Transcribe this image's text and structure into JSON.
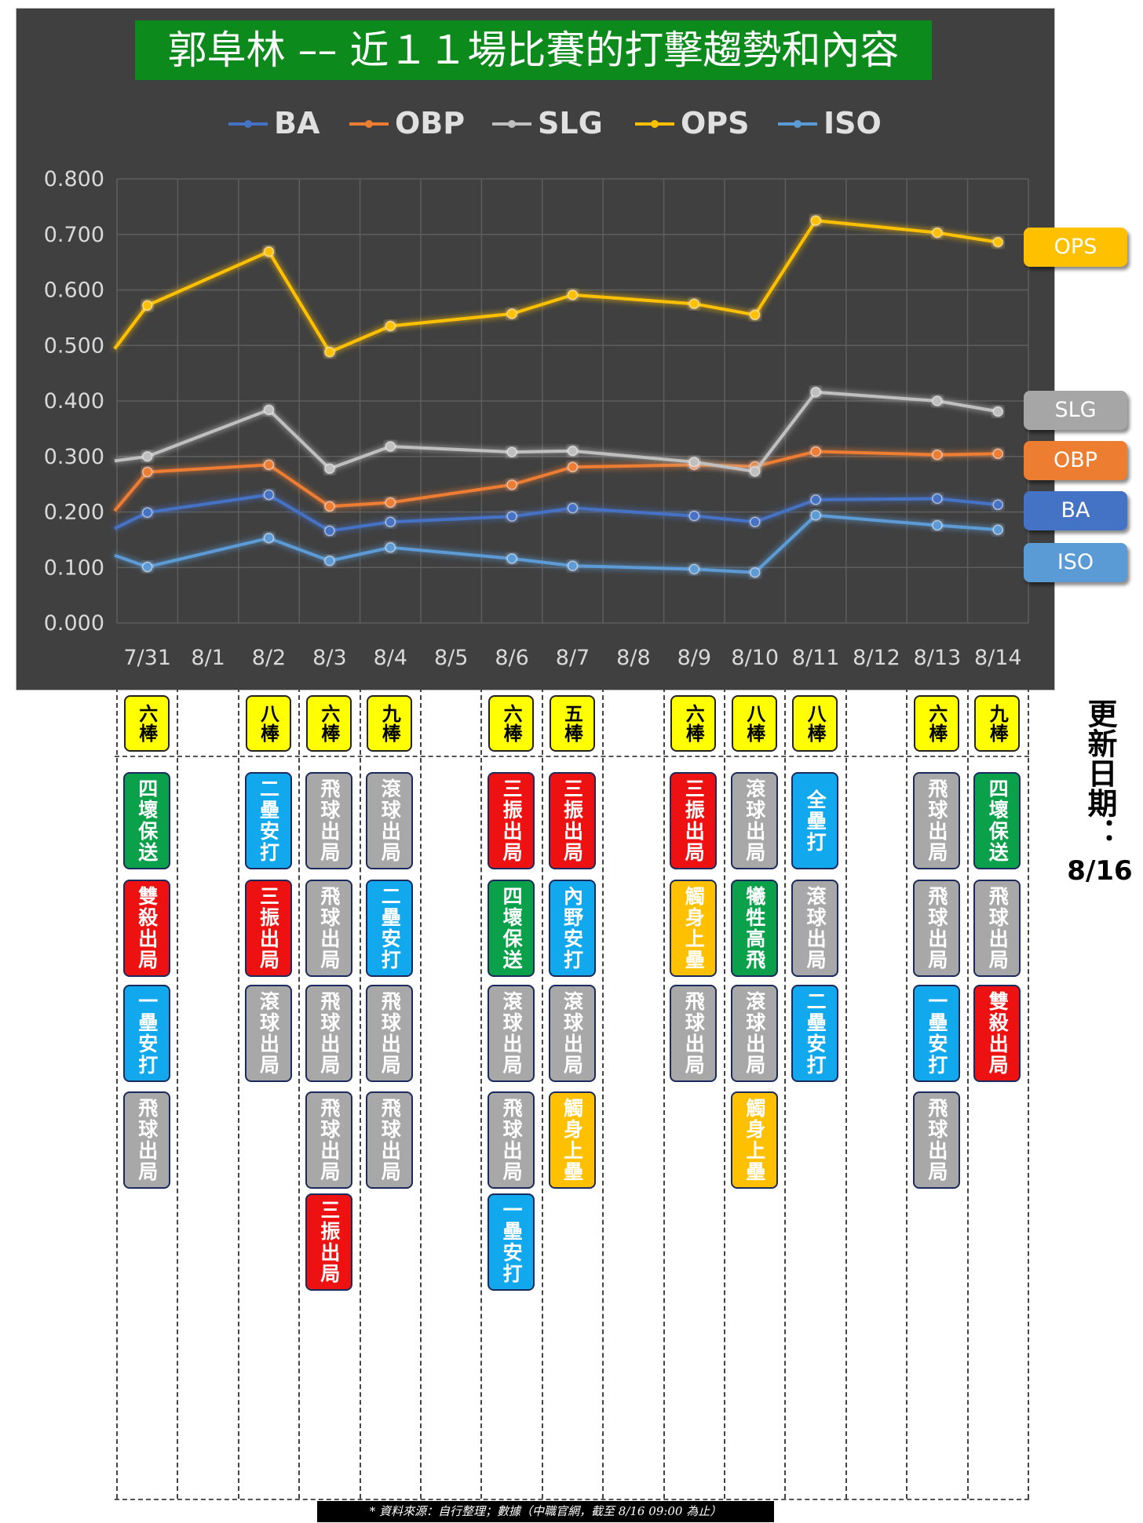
{
  "title": "郭阜林 –– 近１１場比賽的打擊趨勢和內容",
  "chart_data": {
    "type": "line",
    "categories": [
      "7/31",
      "8/1",
      "8/2",
      "8/3",
      "8/4",
      "8/5",
      "8/6",
      "8/7",
      "8/8",
      "8/9",
      "8/10",
      "8/11",
      "8/12",
      "8/13",
      "8/14"
    ],
    "ylim": [
      0,
      0.8
    ],
    "yticks": [
      "0.800",
      "0.700",
      "0.600",
      "0.500",
      "0.400",
      "0.300",
      "0.200",
      "0.100",
      "0.000"
    ],
    "grid": true,
    "legend_position": "top",
    "series": [
      {
        "name": "BA",
        "color": "#4472c4",
        "start": 0.17,
        "values": [
          0.199,
          null,
          0.231,
          0.166,
          0.182,
          null,
          0.192,
          0.207,
          null,
          0.193,
          0.182,
          0.222,
          null,
          0.224,
          0.213
        ]
      },
      {
        "name": "OBP",
        "color": "#ed7d31",
        "start": 0.202,
        "values": [
          0.272,
          null,
          0.285,
          0.21,
          0.217,
          null,
          0.249,
          0.281,
          null,
          0.285,
          0.282,
          0.309,
          null,
          0.303,
          0.305
        ]
      },
      {
        "name": "SLG",
        "color": "#bfbfbf",
        "start": 0.292,
        "values": [
          0.3,
          null,
          0.384,
          0.278,
          0.318,
          null,
          0.308,
          0.31,
          null,
          0.29,
          0.273,
          0.416,
          null,
          0.4,
          0.381
        ]
      },
      {
        "name": "OPS",
        "color": "#ffc000",
        "start": 0.494,
        "values": [
          0.572,
          null,
          0.669,
          0.488,
          0.535,
          null,
          0.557,
          0.591,
          null,
          0.575,
          0.555,
          0.725,
          null,
          0.703,
          0.686
        ]
      },
      {
        "name": "ISO",
        "color": "#5b9bd5",
        "start": 0.122,
        "values": [
          0.101,
          null,
          0.153,
          0.112,
          0.136,
          null,
          0.116,
          0.103,
          null,
          0.097,
          0.091,
          0.194,
          null,
          0.176,
          0.168
        ]
      }
    ],
    "right_labels": [
      {
        "text": "OPS",
        "color": "#ffc000"
      },
      {
        "text": "SLG",
        "color": "#a6a6a6"
      },
      {
        "text": "OBP",
        "color": "#ed7d31"
      },
      {
        "text": "BA",
        "color": "#4472c4"
      },
      {
        "text": "ISO",
        "color": "#5b9bd5"
      }
    ]
  },
  "games": [
    {
      "date": "7/31",
      "order": "六棒",
      "results": [
        "四壞保送",
        "雙殺出局",
        "一壘安打",
        "飛球出局"
      ]
    },
    {
      "date": "8/2",
      "order": "八棒",
      "results": [
        "二壘安打",
        "三振出局",
        "滾球出局"
      ]
    },
    {
      "date": "8/3",
      "order": "六棒",
      "results": [
        "飛球出局",
        "飛球出局",
        "飛球出局",
        "飛球出局",
        "三振出局"
      ]
    },
    {
      "date": "8/4",
      "order": "九棒",
      "results": [
        "滾球出局",
        "二壘安打",
        "飛球出局",
        "飛球出局"
      ]
    },
    {
      "date": "8/6",
      "order": "六棒",
      "results": [
        "三振出局",
        "四壞保送",
        "滾球出局",
        "飛球出局",
        "一壘安打"
      ]
    },
    {
      "date": "8/7",
      "order": "五棒",
      "results": [
        "三振出局",
        "內野安打",
        "滾球出局",
        "觸身上壘"
      ]
    },
    {
      "date": "8/9",
      "order": "六棒",
      "results": [
        "三振出局",
        "觸身上壘",
        "飛球出局"
      ]
    },
    {
      "date": "8/10",
      "order": "八棒",
      "results": [
        "滾球出局",
        "犧牲高飛",
        "滾球出局",
        "觸身上壘"
      ]
    },
    {
      "date": "8/11",
      "order": "八棒",
      "results": [
        "全壘打",
        "滾球出局",
        "二壘安打"
      ]
    },
    {
      "date": "8/13",
      "order": "六棒",
      "results": [
        "飛球出局",
        "飛球出局",
        "一壘安打",
        "飛球出局"
      ]
    },
    {
      "date": "8/14",
      "order": "九棒",
      "results": [
        "四壞保送",
        "飛球出局",
        "雙殺出局"
      ]
    }
  ],
  "result_colors": {
    "四壞保送": "#0aa14a",
    "雙殺出局": "#ee1111",
    "一壘安打": "#11a8ee",
    "飛球出局": "#a8a8a8",
    "二壘安打": "#11a8ee",
    "三振出局": "#ee1111",
    "滾球出局": "#a8a8a8",
    "內野安打": "#11a8ee",
    "觸身上壘": "#ffc000",
    "犧牲高飛": "#0aa14a",
    "全壘打": "#11a8ee"
  },
  "update": {
    "label": "更新日期：",
    "date": "8/16"
  },
  "source_note": "* 資料來源：自行整理；數據（中職官網，截至 8/16 09:00 為止）"
}
